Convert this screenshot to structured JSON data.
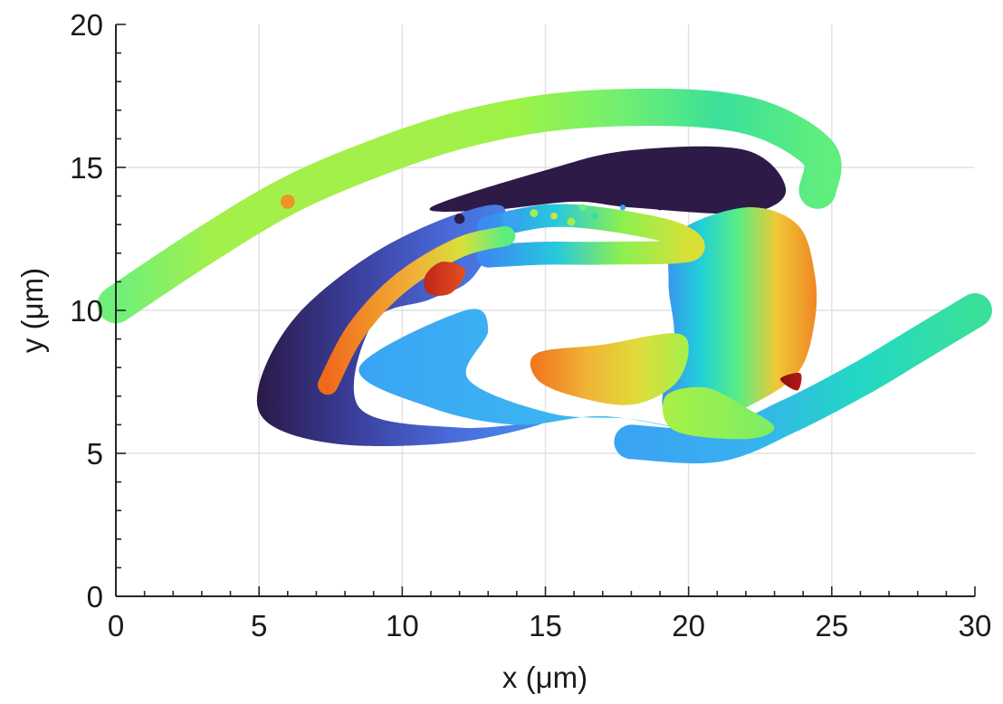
{
  "chart_data": {
    "type": "surface-render",
    "title": "",
    "xlabel": "x (μm)",
    "ylabel": "y (μm)",
    "xlim": [
      0,
      30
    ],
    "ylim": [
      0,
      20
    ],
    "xticks": [
      0,
      5,
      10,
      15,
      20,
      25,
      30
    ],
    "yticks": [
      0,
      5,
      10,
      15,
      20
    ],
    "xtick_labels": [
      "0",
      "5",
      "10",
      "15",
      "20",
      "25",
      "30"
    ],
    "ytick_labels": [
      "0",
      "5",
      "10",
      "15",
      "20"
    ],
    "grid": true,
    "colormap": "turbo",
    "surfaces": [
      {
        "id": "upper-arc",
        "points": [
          [
            0,
            10.2
          ],
          [
            3,
            12.2
          ],
          [
            6,
            14
          ],
          [
            9,
            15.3
          ],
          [
            12,
            16.3
          ],
          [
            15,
            16.9
          ],
          [
            18,
            17.1
          ],
          [
            21,
            17
          ],
          [
            23,
            16.5
          ],
          [
            24.6,
            15.4
          ],
          [
            24.5,
            14.2
          ]
        ],
        "thickness": 1.3,
        "colors": [
          "#6ff07a",
          "#a4f04a",
          "#a4f04a",
          "#a4f04a",
          "#9cf246",
          "#72f070",
          "#3ae09a",
          "#60ee7e"
        ]
      },
      {
        "id": "lower-right-arc",
        "points": [
          [
            18,
            5.4
          ],
          [
            21,
            5.3
          ],
          [
            23.5,
            6.3
          ],
          [
            26,
            7.6
          ],
          [
            28,
            8.8
          ],
          [
            30,
            10
          ]
        ],
        "thickness": 1.2,
        "colors": [
          "#3aa4f4",
          "#38b0f0",
          "#22d8c4",
          "#3ae09a"
        ]
      },
      {
        "id": "dark-upper-lobe",
        "points": [
          [
            11,
            13.6
          ],
          [
            15,
            14.9
          ],
          [
            18,
            15.6
          ],
          [
            22,
            15.6
          ],
          [
            23.4,
            14.2
          ],
          [
            22,
            13.4
          ],
          [
            18,
            13.6
          ],
          [
            16,
            13.8
          ],
          [
            13,
            13.5
          ]
        ],
        "colors": [
          "#2e1a47"
        ]
      },
      {
        "id": "left-dark-lobe",
        "points": [
          [
            5,
            7.4
          ],
          [
            6.3,
            9.8
          ],
          [
            9,
            12
          ],
          [
            12,
            13.4
          ],
          [
            13.6,
            13.5
          ],
          [
            12.5,
            11.2
          ],
          [
            11,
            10.4
          ],
          [
            9,
            9.6
          ],
          [
            8.5,
            6.6
          ],
          [
            12,
            5.9
          ],
          [
            15,
            6.1
          ],
          [
            12,
            5.4
          ],
          [
            8,
            5.3
          ],
          [
            5.4,
            6
          ]
        ],
        "colors": [
          "#2b1a4a",
          "#3a3f9c",
          "#4a6ad8",
          "#4590f0"
        ]
      },
      {
        "id": "mid-blue-band",
        "points": [
          [
            8.5,
            8
          ],
          [
            12.2,
            10
          ],
          [
            13,
            9.3
          ],
          [
            12.3,
            7.6
          ],
          [
            15.2,
            6.4
          ],
          [
            18,
            6.2
          ],
          [
            20,
            5.8
          ],
          [
            17,
            6.3
          ],
          [
            14,
            6
          ],
          [
            11,
            6.6
          ]
        ],
        "colors": [
          "#3aa4f4",
          "#3ec0f0"
        ]
      },
      {
        "id": "right-column",
        "points": [
          [
            19.6,
            12.7
          ],
          [
            22,
            13.6
          ],
          [
            23.8,
            13
          ],
          [
            24.4,
            11.3
          ],
          [
            24.4,
            9.6
          ],
          [
            23.8,
            7.8
          ],
          [
            22,
            6.6
          ],
          [
            20.3,
            6
          ],
          [
            19.1,
            6.6
          ],
          [
            19.5,
            9
          ],
          [
            19.3,
            11
          ]
        ],
        "colors": [
          "#3d8ef2",
          "#20d0d8",
          "#5aee82",
          "#f0c836",
          "#f08a24"
        ]
      },
      {
        "id": "upper-rod",
        "points": [
          [
            13,
            12.9
          ],
          [
            15,
            13.3
          ],
          [
            17,
            13.2
          ],
          [
            19.5,
            12.7
          ],
          [
            20,
            12.1
          ],
          [
            17,
            12
          ],
          [
            15,
            12
          ],
          [
            13,
            11.9
          ]
        ],
        "thickness": 0.8,
        "colors": [
          "#3a8cf0",
          "#26c8de",
          "#8cf050",
          "#d8e038"
        ]
      },
      {
        "id": "left-rod",
        "points": [
          [
            7.4,
            7.4
          ],
          [
            8.4,
            9.3
          ],
          [
            10,
            11
          ],
          [
            12,
            12.2
          ],
          [
            13.6,
            12.6
          ]
        ],
        "thickness": 0.7,
        "colors": [
          "#f06a1c",
          "#f0922a",
          "#f0b23a",
          "#d8e038",
          "#5aee82"
        ]
      },
      {
        "id": "lower-rod",
        "points": [
          [
            14.7,
            8.5
          ],
          [
            17,
            8.8
          ],
          [
            19.5,
            9.2
          ],
          [
            20,
            8.6
          ],
          [
            19.5,
            7.4
          ],
          [
            18,
            6.7
          ],
          [
            16,
            7
          ],
          [
            14.7,
            7.6
          ]
        ],
        "colors": [
          "#f07a20",
          "#f0b436",
          "#e0dc3a",
          "#a4f04a"
        ]
      },
      {
        "id": "bottom-green-node",
        "points": [
          [
            19.2,
            7
          ],
          [
            20.6,
            7.3
          ],
          [
            22,
            6.6
          ],
          [
            23,
            5.9
          ],
          [
            22,
            5.5
          ],
          [
            19.5,
            5.8
          ]
        ],
        "colors": [
          "#a8f046",
          "#7aee66"
        ]
      },
      {
        "id": "left-small-knob",
        "points": [
          [
            10.9,
            10.6
          ],
          [
            11.7,
            10.6
          ],
          [
            12.2,
            11.4
          ],
          [
            11.4,
            11.7
          ],
          [
            10.8,
            11.2
          ]
        ],
        "colors": [
          "#c0271c",
          "#e4501e"
        ]
      },
      {
        "id": "right-small-knob",
        "points": [
          [
            23.2,
            7.6
          ],
          [
            23.9,
            7.8
          ],
          [
            23.8,
            7.2
          ]
        ],
        "colors": [
          "#8a1010",
          "#b01818"
        ]
      }
    ],
    "droplets": [
      {
        "x": 12.0,
        "y": 13.2,
        "r": 0.18,
        "color": "#2b1a4a"
      },
      {
        "x": 13.8,
        "y": 13.2,
        "r": 0.3,
        "color": "#3aa4f4"
      },
      {
        "x": 14.6,
        "y": 13.4,
        "r": 0.14,
        "color": "#a4f04a"
      },
      {
        "x": 15.3,
        "y": 13.3,
        "r": 0.12,
        "color": "#d8e038"
      },
      {
        "x": 15.9,
        "y": 13.1,
        "r": 0.14,
        "color": "#a4f04a"
      },
      {
        "x": 16.3,
        "y": 13.6,
        "r": 0.12,
        "color": "#6ff07a"
      },
      {
        "x": 16.7,
        "y": 13.3,
        "r": 0.12,
        "color": "#3ae09a"
      },
      {
        "x": 17.7,
        "y": 13.6,
        "r": 0.1,
        "color": "#3aa4f4"
      },
      {
        "x": 19.0,
        "y": 13.6,
        "r": 0.1,
        "color": "#2b1a4a"
      },
      {
        "x": 6.0,
        "y": 13.8,
        "r": 0.25,
        "color": "#f0922a"
      }
    ]
  }
}
